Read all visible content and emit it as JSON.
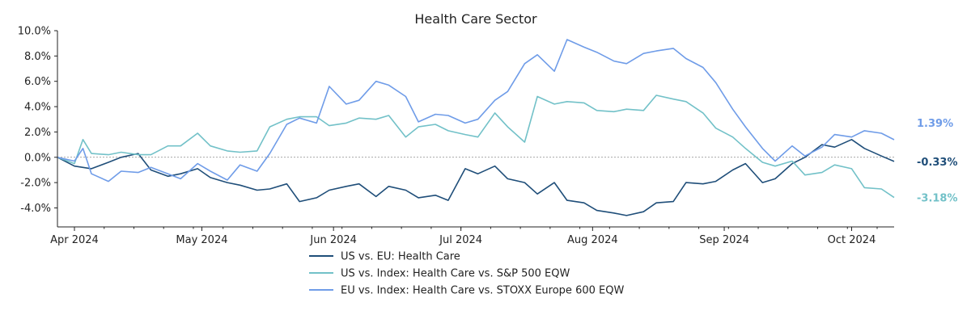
{
  "chart_data": {
    "type": "line",
    "title": "Health Care Sector",
    "xlabel": "",
    "ylabel": "",
    "x_range": [
      "2024-03-28",
      "2024-10-11"
    ],
    "ylim": [
      -5.5,
      10
    ],
    "y_ticks": [
      -4,
      -2,
      0,
      2,
      4,
      6,
      8,
      10
    ],
    "y_tick_format": "percent_1dp",
    "x_ticks": [
      {
        "date": "2024-04-01",
        "label": "Apr 2024"
      },
      {
        "date": "2024-05-01",
        "label": "May 2024"
      },
      {
        "date": "2024-06-01",
        "label": "Jun 2024"
      },
      {
        "date": "2024-07-01",
        "label": "Jul 2024"
      },
      {
        "date": "2024-08-01",
        "label": "Aug 2024"
      },
      {
        "date": "2024-09-01",
        "label": "Sep 2024"
      },
      {
        "date": "2024-10-01",
        "label": "Oct 2024"
      }
    ],
    "zero_line": true,
    "legend_position": "bottom-center",
    "series": [
      {
        "name": "US vs. EU: Health Care",
        "color": "#1f4e79",
        "end_label": "-0.33%",
        "points": [
          [
            "2024-03-28",
            0.0
          ],
          [
            "2024-04-01",
            -0.7
          ],
          [
            "2024-04-05",
            -0.9
          ],
          [
            "2024-04-09",
            -0.4
          ],
          [
            "2024-04-12",
            0.0
          ],
          [
            "2024-04-16",
            0.3
          ],
          [
            "2024-04-19",
            -1.0
          ],
          [
            "2024-04-23",
            -1.5
          ],
          [
            "2024-04-26",
            -1.3
          ],
          [
            "2024-04-30",
            -0.9
          ],
          [
            "2024-05-03",
            -1.6
          ],
          [
            "2024-05-07",
            -2.0
          ],
          [
            "2024-05-10",
            -2.2
          ],
          [
            "2024-05-14",
            -2.6
          ],
          [
            "2024-05-17",
            -2.5
          ],
          [
            "2024-05-21",
            -2.1
          ],
          [
            "2024-05-24",
            -3.5
          ],
          [
            "2024-05-28",
            -3.2
          ],
          [
            "2024-05-31",
            -2.6
          ],
          [
            "2024-06-04",
            -2.3
          ],
          [
            "2024-06-07",
            -2.1
          ],
          [
            "2024-06-11",
            -3.1
          ],
          [
            "2024-06-14",
            -2.3
          ],
          [
            "2024-06-18",
            -2.6
          ],
          [
            "2024-06-21",
            -3.2
          ],
          [
            "2024-06-25",
            -3.0
          ],
          [
            "2024-06-28",
            -3.4
          ],
          [
            "2024-07-02",
            -0.9
          ],
          [
            "2024-07-05",
            -1.3
          ],
          [
            "2024-07-09",
            -0.7
          ],
          [
            "2024-07-12",
            -1.7
          ],
          [
            "2024-07-16",
            -2.0
          ],
          [
            "2024-07-19",
            -2.9
          ],
          [
            "2024-07-23",
            -2.0
          ],
          [
            "2024-07-26",
            -3.4
          ],
          [
            "2024-07-30",
            -3.6
          ],
          [
            "2024-08-02",
            -4.2
          ],
          [
            "2024-08-06",
            -4.4
          ],
          [
            "2024-08-09",
            -4.6
          ],
          [
            "2024-08-13",
            -4.3
          ],
          [
            "2024-08-16",
            -3.6
          ],
          [
            "2024-08-20",
            -3.5
          ],
          [
            "2024-08-23",
            -2.0
          ],
          [
            "2024-08-27",
            -2.1
          ],
          [
            "2024-08-30",
            -1.9
          ],
          [
            "2024-09-03",
            -1.0
          ],
          [
            "2024-09-06",
            -0.5
          ],
          [
            "2024-09-10",
            -2.0
          ],
          [
            "2024-09-13",
            -1.7
          ],
          [
            "2024-09-17",
            -0.5
          ],
          [
            "2024-09-20",
            0.0
          ],
          [
            "2024-09-24",
            1.0
          ],
          [
            "2024-09-27",
            0.8
          ],
          [
            "2024-10-01",
            1.4
          ],
          [
            "2024-10-04",
            0.7
          ],
          [
            "2024-10-08",
            0.1
          ],
          [
            "2024-10-11",
            -0.33
          ]
        ]
      },
      {
        "name": "US vs. Index: Health Care vs. S&P 500 EQW",
        "color": "#72c1c8",
        "end_label": "-3.18%",
        "points": [
          [
            "2024-03-28",
            0.0
          ],
          [
            "2024-04-01",
            -0.5
          ],
          [
            "2024-04-03",
            1.4
          ],
          [
            "2024-04-05",
            0.3
          ],
          [
            "2024-04-09",
            0.2
          ],
          [
            "2024-04-12",
            0.4
          ],
          [
            "2024-04-16",
            0.2
          ],
          [
            "2024-04-19",
            0.2
          ],
          [
            "2024-04-23",
            0.9
          ],
          [
            "2024-04-26",
            0.9
          ],
          [
            "2024-04-30",
            1.9
          ],
          [
            "2024-05-03",
            0.9
          ],
          [
            "2024-05-07",
            0.5
          ],
          [
            "2024-05-10",
            0.4
          ],
          [
            "2024-05-14",
            0.5
          ],
          [
            "2024-05-17",
            2.4
          ],
          [
            "2024-05-21",
            3.0
          ],
          [
            "2024-05-24",
            3.2
          ],
          [
            "2024-05-28",
            3.2
          ],
          [
            "2024-05-31",
            2.5
          ],
          [
            "2024-06-04",
            2.7
          ],
          [
            "2024-06-07",
            3.1
          ],
          [
            "2024-06-11",
            3.0
          ],
          [
            "2024-06-14",
            3.3
          ],
          [
            "2024-06-18",
            1.6
          ],
          [
            "2024-06-21",
            2.4
          ],
          [
            "2024-06-25",
            2.6
          ],
          [
            "2024-06-28",
            2.1
          ],
          [
            "2024-07-02",
            1.8
          ],
          [
            "2024-07-05",
            1.6
          ],
          [
            "2024-07-09",
            3.5
          ],
          [
            "2024-07-12",
            2.4
          ],
          [
            "2024-07-16",
            1.2
          ],
          [
            "2024-07-19",
            4.8
          ],
          [
            "2024-07-23",
            4.2
          ],
          [
            "2024-07-26",
            4.4
          ],
          [
            "2024-07-30",
            4.3
          ],
          [
            "2024-08-02",
            3.7
          ],
          [
            "2024-08-06",
            3.6
          ],
          [
            "2024-08-09",
            3.8
          ],
          [
            "2024-08-13",
            3.7
          ],
          [
            "2024-08-16",
            4.9
          ],
          [
            "2024-08-20",
            4.6
          ],
          [
            "2024-08-23",
            4.4
          ],
          [
            "2024-08-27",
            3.5
          ],
          [
            "2024-08-30",
            2.3
          ],
          [
            "2024-09-03",
            1.6
          ],
          [
            "2024-09-06",
            0.7
          ],
          [
            "2024-09-10",
            -0.4
          ],
          [
            "2024-09-13",
            -0.7
          ],
          [
            "2024-09-17",
            -0.3
          ],
          [
            "2024-09-20",
            -1.4
          ],
          [
            "2024-09-24",
            -1.2
          ],
          [
            "2024-09-27",
            -0.6
          ],
          [
            "2024-10-01",
            -0.9
          ],
          [
            "2024-10-04",
            -2.4
          ],
          [
            "2024-10-08",
            -2.5
          ],
          [
            "2024-10-11",
            -3.18
          ]
        ]
      },
      {
        "name": "EU vs. Index: Health Care vs. STOXX Europe 600 EQW",
        "color": "#6f9ce8",
        "end_label": "1.39%",
        "points": [
          [
            "2024-03-28",
            0.0
          ],
          [
            "2024-04-01",
            -0.3
          ],
          [
            "2024-04-03",
            0.7
          ],
          [
            "2024-04-05",
            -1.3
          ],
          [
            "2024-04-09",
            -1.9
          ],
          [
            "2024-04-12",
            -1.1
          ],
          [
            "2024-04-16",
            -1.2
          ],
          [
            "2024-04-19",
            -0.8
          ],
          [
            "2024-04-23",
            -1.3
          ],
          [
            "2024-04-26",
            -1.7
          ],
          [
            "2024-04-30",
            -0.5
          ],
          [
            "2024-05-03",
            -1.1
          ],
          [
            "2024-05-07",
            -1.8
          ],
          [
            "2024-05-10",
            -0.6
          ],
          [
            "2024-05-14",
            -1.1
          ],
          [
            "2024-05-17",
            0.3
          ],
          [
            "2024-05-21",
            2.6
          ],
          [
            "2024-05-24",
            3.1
          ],
          [
            "2024-05-28",
            2.7
          ],
          [
            "2024-05-31",
            5.6
          ],
          [
            "2024-06-04",
            4.2
          ],
          [
            "2024-06-07",
            4.5
          ],
          [
            "2024-06-11",
            6.0
          ],
          [
            "2024-06-14",
            5.7
          ],
          [
            "2024-06-18",
            4.8
          ],
          [
            "2024-06-21",
            2.8
          ],
          [
            "2024-06-25",
            3.4
          ],
          [
            "2024-06-28",
            3.3
          ],
          [
            "2024-07-02",
            2.7
          ],
          [
            "2024-07-05",
            3.0
          ],
          [
            "2024-07-09",
            4.5
          ],
          [
            "2024-07-12",
            5.2
          ],
          [
            "2024-07-16",
            7.4
          ],
          [
            "2024-07-19",
            8.1
          ],
          [
            "2024-07-23",
            6.8
          ],
          [
            "2024-07-26",
            9.3
          ],
          [
            "2024-07-30",
            8.7
          ],
          [
            "2024-08-02",
            8.3
          ],
          [
            "2024-08-06",
            7.6
          ],
          [
            "2024-08-09",
            7.4
          ],
          [
            "2024-08-13",
            8.2
          ],
          [
            "2024-08-16",
            8.4
          ],
          [
            "2024-08-20",
            8.6
          ],
          [
            "2024-08-23",
            7.8
          ],
          [
            "2024-08-27",
            7.1
          ],
          [
            "2024-08-30",
            5.9
          ],
          [
            "2024-09-03",
            3.8
          ],
          [
            "2024-09-06",
            2.4
          ],
          [
            "2024-09-10",
            0.7
          ],
          [
            "2024-09-13",
            -0.3
          ],
          [
            "2024-09-17",
            0.9
          ],
          [
            "2024-09-20",
            0.1
          ],
          [
            "2024-09-24",
            0.8
          ],
          [
            "2024-09-27",
            1.8
          ],
          [
            "2024-10-01",
            1.6
          ],
          [
            "2024-10-04",
            2.1
          ],
          [
            "2024-10-08",
            1.9
          ],
          [
            "2024-10-11",
            1.39
          ]
        ]
      }
    ]
  }
}
